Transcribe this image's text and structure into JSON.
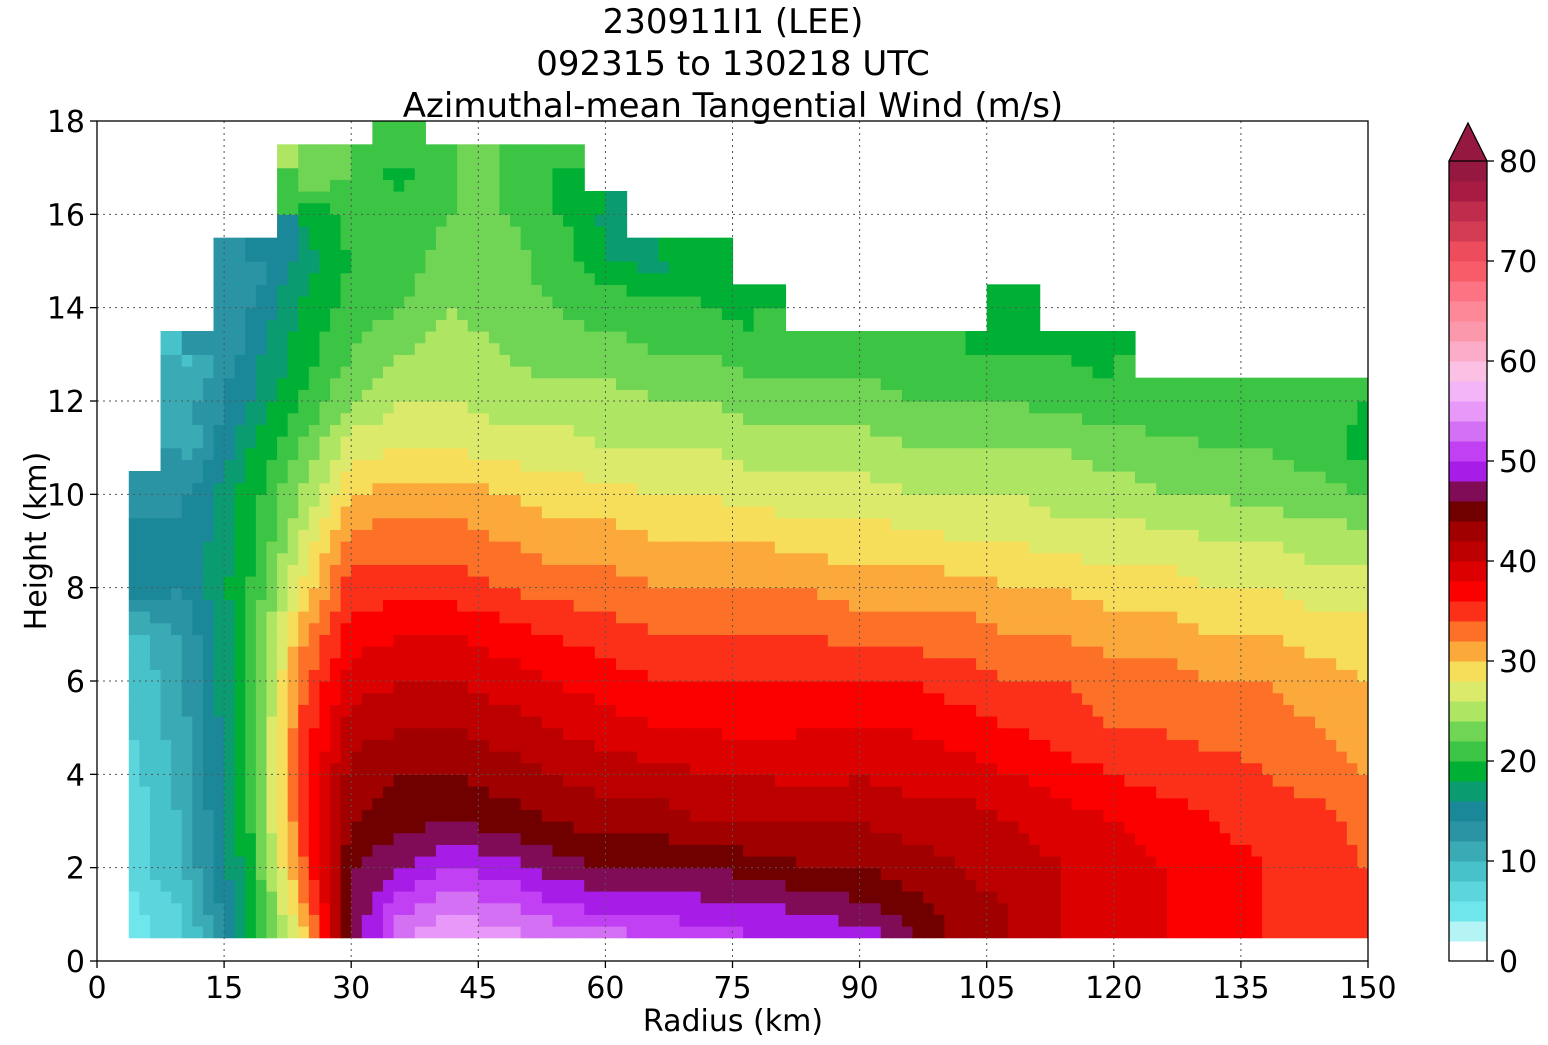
{
  "title": {
    "line1": "230911I1 (LEE)",
    "line2": "092315 to 130218 UTC",
    "line3": "Azimuthal-mean Tangential Wind (m/s)"
  },
  "axes": {
    "xlabel": "Radius (km)",
    "ylabel": "Height (km)"
  },
  "chart_data": {
    "type": "heatmap",
    "title": "230911I1 (LEE) 092315 to 130218 UTC Azimuthal-mean Tangential Wind (m/s)",
    "xlabel": "Radius (km)",
    "ylabel": "Height (km)",
    "xlim": [
      0,
      150
    ],
    "ylim": [
      0,
      18
    ],
    "x_ticks": [
      0,
      15,
      30,
      45,
      60,
      75,
      90,
      105,
      120,
      135,
      150
    ],
    "y_ticks": [
      0,
      2,
      4,
      6,
      8,
      10,
      12,
      14,
      16,
      18
    ],
    "grid": true,
    "colorbar": {
      "label": "m/s",
      "range": [
        0,
        80
      ],
      "ticks": [
        0,
        10,
        20,
        30,
        40,
        50,
        60,
        70,
        80
      ],
      "step": 2,
      "extend": "max",
      "colors": [
        "#ffffff",
        "#b4f4f4",
        "#6ee6ec",
        "#5cd6dc",
        "#48c2ca",
        "#3aaab4",
        "#2a94a4",
        "#1a8898",
        "#0a9c70",
        "#00b034",
        "#3cc444",
        "#70d454",
        "#aee664",
        "#dcea6c",
        "#f6de5a",
        "#fca93c",
        "#fc7028",
        "#fc3018",
        "#fc0000",
        "#dc0000",
        "#bc0000",
        "#a00000",
        "#700000",
        "#800c58",
        "#a81ce8",
        "#c240f4",
        "#d470f4",
        "#e898f8",
        "#f4b4f8",
        "#fcc0e4",
        "#fcacc8",
        "#fc98ac",
        "#fc8898",
        "#fc7484",
        "#f85c68",
        "#ec4c5c",
        "#d43c54",
        "#c02c4c",
        "#a81c44",
        "#941840"
      ]
    },
    "radius_km": [
      4,
      10,
      18,
      24,
      30,
      36,
      42,
      48,
      54,
      60,
      66,
      72,
      78,
      84,
      90,
      96,
      102,
      108,
      114,
      120,
      126,
      132,
      138,
      144,
      150
    ],
    "height_km": [
      0.5,
      1,
      2,
      3,
      4,
      5,
      6,
      7,
      8,
      9,
      10,
      11,
      12,
      13,
      14,
      15,
      16,
      17,
      18
    ],
    "wind_ms": [
      [
        5,
        7,
        18,
        28,
        46,
        54,
        56,
        55,
        54,
        53,
        52,
        51,
        50,
        50,
        50,
        47,
        43,
        42,
        40,
        39,
        38,
        37,
        36,
        35,
        34
      ],
      [
        5,
        8,
        18,
        30,
        46,
        52,
        54,
        53,
        51,
        50,
        50,
        49,
        49,
        48,
        47,
        45,
        43,
        42,
        40,
        39,
        38,
        37,
        36,
        35,
        34
      ],
      [
        7,
        10,
        19,
        33,
        46,
        48,
        50,
        49,
        47,
        46,
        46,
        46,
        45,
        44,
        44,
        43,
        42,
        41,
        40,
        39,
        38,
        37,
        36,
        35,
        34
      ],
      [
        7,
        10,
        20,
        34,
        44,
        45,
        46,
        45,
        44,
        43,
        43,
        42,
        42,
        42,
        42,
        41,
        41,
        40,
        39,
        38,
        37,
        36,
        35,
        35,
        33
      ],
      [
        7,
        11,
        20,
        35,
        43,
        44,
        44,
        43,
        42,
        41,
        41,
        40,
        40,
        39,
        40,
        39,
        39,
        38,
        37,
        36,
        35,
        35,
        34,
        33,
        32
      ],
      [
        8,
        11,
        20,
        34,
        41,
        42,
        42,
        41,
        40,
        39,
        38,
        38,
        37,
        38,
        38,
        38,
        37,
        36,
        35,
        34,
        34,
        33,
        33,
        32,
        31
      ],
      [
        8,
        12,
        20,
        33,
        39,
        40,
        40,
        39,
        38,
        37,
        36,
        36,
        36,
        36,
        36,
        36,
        35,
        34,
        34,
        33,
        33,
        32,
        32,
        31,
        30
      ],
      [
        9,
        12,
        20,
        31,
        37,
        38,
        38,
        37,
        36,
        35,
        34,
        34,
        34,
        34,
        33,
        33,
        33,
        32,
        32,
        31,
        31,
        30,
        30,
        29,
        29
      ],
      [
        16,
        14,
        20,
        28,
        35,
        35,
        35,
        34,
        33,
        33,
        32,
        32,
        32,
        32,
        31,
        31,
        31,
        30,
        30,
        29,
        29,
        28,
        28,
        27,
        27
      ],
      [
        16,
        14,
        19,
        26,
        33,
        33,
        33,
        32,
        31,
        31,
        30,
        30,
        30,
        29,
        29,
        29,
        28,
        28,
        27,
        27,
        27,
        26,
        26,
        25,
        25
      ],
      [
        12,
        14,
        19,
        24,
        30,
        31,
        31,
        30,
        29,
        29,
        28,
        28,
        27,
        27,
        27,
        26,
        26,
        26,
        25,
        25,
        24,
        24,
        23,
        23,
        22
      ],
      [
        0,
        10,
        18,
        22,
        27,
        28,
        28,
        27,
        27,
        26,
        26,
        26,
        25,
        25,
        25,
        24,
        24,
        24,
        24,
        23,
        23,
        22,
        22,
        21,
        19
      ],
      [
        0,
        11,
        16,
        20,
        24,
        26,
        26,
        25,
        25,
        25,
        24,
        24,
        23,
        23,
        23,
        22,
        22,
        22,
        21,
        21,
        20,
        20,
        21,
        21,
        20
      ],
      [
        0,
        9,
        15,
        19,
        22,
        24,
        25,
        24,
        23,
        23,
        22,
        22,
        21,
        21,
        21,
        21,
        20,
        20,
        20,
        19,
        0,
        0,
        0,
        0,
        0
      ],
      [
        0,
        0,
        14,
        18,
        21,
        22,
        24,
        23,
        22,
        21,
        21,
        20,
        19,
        0,
        0,
        0,
        0,
        19,
        0,
        0,
        0,
        0,
        0,
        0,
        0
      ],
      [
        0,
        0,
        12,
        17,
        20,
        21,
        23,
        23,
        21,
        19,
        17,
        19,
        0,
        0,
        0,
        0,
        0,
        0,
        0,
        0,
        0,
        0,
        0,
        0,
        0
      ],
      [
        0,
        0,
        0,
        18,
        21,
        21,
        22,
        22,
        21,
        17,
        0,
        0,
        0,
        0,
        0,
        0,
        0,
        0,
        0,
        0,
        0,
        0,
        0,
        0,
        0
      ],
      [
        0,
        0,
        0,
        25,
        22,
        19,
        22,
        22,
        20,
        0,
        0,
        0,
        0,
        0,
        0,
        0,
        0,
        0,
        0,
        0,
        0,
        0,
        0,
        0,
        0
      ],
      [
        0,
        0,
        0,
        0,
        0,
        22,
        0,
        0,
        0,
        0,
        0,
        0,
        0,
        0,
        0,
        0,
        0,
        0,
        0,
        0,
        0,
        0,
        0,
        0,
        0
      ]
    ]
  }
}
